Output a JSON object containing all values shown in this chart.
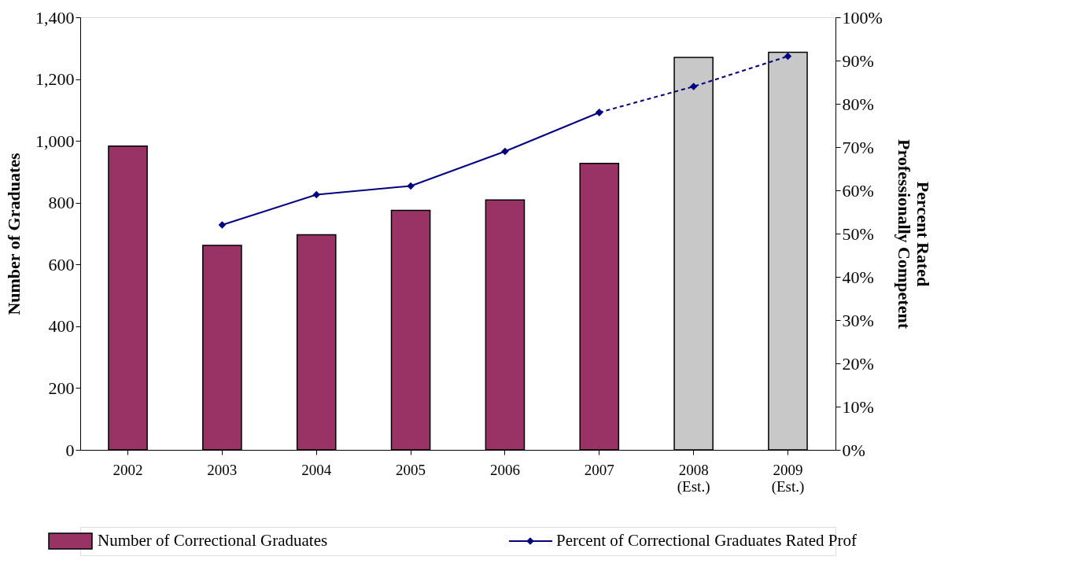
{
  "chart_data": {
    "type": "bar",
    "categories": [
      "2002",
      "2003",
      "2004",
      "2005",
      "2006",
      "2007",
      "2008\n(Est.)",
      "2009\n(Est.)"
    ],
    "ylabel": "Number of Graduates",
    "y2label": "Percent Rated\nProfessionally Competent",
    "ylim": [
      0,
      1400
    ],
    "yticks": [
      0,
      200,
      400,
      600,
      800,
      {
        "value": 1000,
        "label": "1,000"
      },
      {
        "value": 1200,
        "label": "1,200"
      },
      {
        "value": 1400,
        "label": "1,400"
      }
    ],
    "y2lim": [
      0,
      100
    ],
    "y2ticks": [
      {
        "value": 0,
        "label": "0%"
      },
      {
        "value": 10,
        "label": "10%"
      },
      {
        "value": 20,
        "label": "20%"
      },
      {
        "value": 30,
        "label": "30%"
      },
      {
        "value": 40,
        "label": "40%"
      },
      {
        "value": 50,
        "label": "50%"
      },
      {
        "value": 60,
        "label": "60%"
      },
      {
        "value": 70,
        "label": "70%"
      },
      {
        "value": 80,
        "label": "80%"
      },
      {
        "value": 90,
        "label": "90%"
      },
      {
        "value": 100,
        "label": "100%"
      }
    ],
    "series": [
      {
        "name": "Number of Correctional Graduates",
        "colors": [
          "#993366",
          "#993366",
          "#993366",
          "#993366",
          "#993366",
          "#993366",
          "#c8c8c8",
          "#c8c8c8"
        ],
        "values": [
          983,
          662,
          696,
          775,
          809,
          927,
          1270,
          1287
        ]
      },
      {
        "name": "Percent of Correctional Graduates Rated Prof",
        "type": "line",
        "axis": "y2",
        "color": "#000080",
        "marker": "diamond",
        "line_style": "solid",
        "values": [
          null,
          52,
          59,
          61,
          69,
          78,
          null,
          null
        ]
      },
      {
        "type": "line",
        "axis": "y2",
        "color": "#000080",
        "marker": "diamond",
        "line_style": "dashed",
        "values": [
          null,
          null,
          null,
          null,
          null,
          78,
          84,
          91
        ]
      }
    ],
    "grid": false,
    "legend": "bottom"
  }
}
